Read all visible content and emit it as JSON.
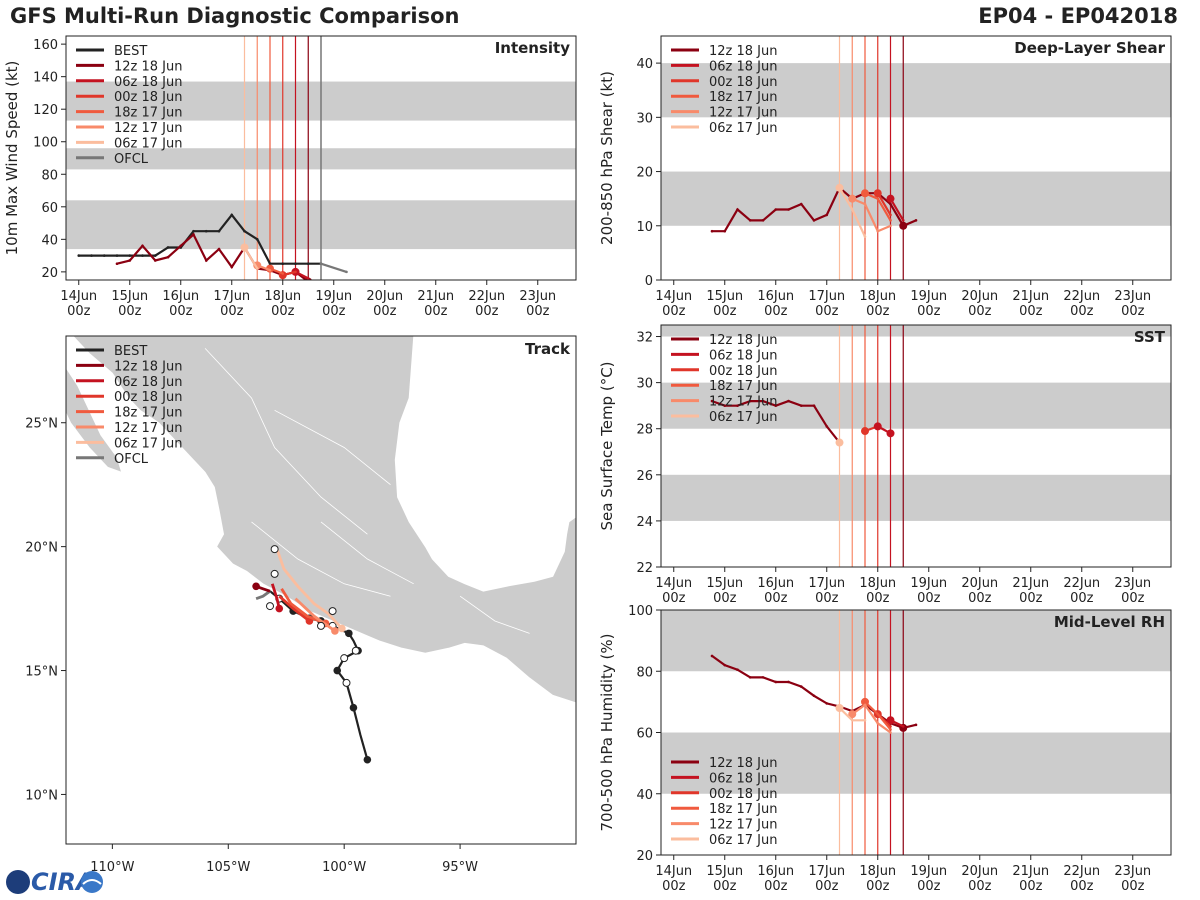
{
  "header": {
    "title_left": "GFS Multi-Run Diagnostic Comparison",
    "title_right": "EP04 - EP042018"
  },
  "logo": {
    "text": "CIRA"
  },
  "colors": {
    "BEST": "#222222",
    "12z 18 Jun": "#8b0011",
    "06z 18 Jun": "#c41220",
    "00z 18 Jun": "#e0362a",
    "18z 17 Jun": "#f05a3e",
    "12z 17 Jun": "#f88a6a",
    "06z 17 Jun": "#fbbd9e",
    "OFCL": "#777777",
    "band": "#cccccc"
  },
  "time_axis": {
    "tick_labels": [
      [
        "14Jun",
        "00z"
      ],
      [
        "15Jun",
        "00z"
      ],
      [
        "16Jun",
        "00z"
      ],
      [
        "17Jun",
        "00z"
      ],
      [
        "18Jun",
        "00z"
      ],
      [
        "19Jun",
        "00z"
      ],
      [
        "20Jun",
        "00z"
      ],
      [
        "21Jun",
        "00z"
      ],
      [
        "22Jun",
        "00z"
      ],
      [
        "23Jun",
        "00z"
      ]
    ],
    "range_days": [
      0,
      10
    ],
    "init_times_days": [
      3.25,
      3.5,
      3.75,
      4.0,
      4.25,
      4.5
    ],
    "ofcl_line_days": 4.75
  },
  "chart_data": [
    {
      "id": "intensity",
      "type": "line",
      "title": "Intensity",
      "ylabel": "10m Max Wind Speed (kt)",
      "ylim": [
        15,
        165
      ],
      "yticks": [
        20,
        40,
        60,
        80,
        100,
        120,
        140,
        160
      ],
      "bands": [
        [
          34,
          64
        ],
        [
          83,
          96
        ],
        [
          113,
          137
        ]
      ],
      "legend": [
        "BEST",
        "12z 18 Jun",
        "06z 18 Jun",
        "00z 18 Jun",
        "18z 17 Jun",
        "12z 17 Jun",
        "06z 17 Jun",
        "OFCL"
      ],
      "series": [
        {
          "name": "BEST",
          "x": [
            0,
            0.25,
            0.5,
            0.75,
            1,
            1.25,
            1.5,
            1.75,
            2,
            2.25,
            2.5,
            2.75,
            3,
            3.25,
            3.5,
            3.75,
            4,
            4.25,
            4.5,
            4.75
          ],
          "y": [
            30,
            30,
            30,
            30,
            30,
            30,
            30,
            35,
            35,
            45,
            45,
            45,
            55,
            45,
            40,
            25,
            25,
            25,
            25,
            25
          ]
        },
        {
          "name": "OFCL",
          "x": [
            4.75,
            5.25
          ],
          "y": [
            25,
            20
          ]
        },
        {
          "name": "12z 18 Jun",
          "x": [
            0.75,
            1,
            1.25,
            1.5,
            1.75,
            2,
            2.25,
            2.5,
            2.75,
            3,
            3.25,
            3.5,
            3.75,
            4,
            4.25,
            4.5
          ],
          "y": [
            25,
            27,
            36,
            27,
            29,
            36,
            43,
            27,
            34,
            23,
            35,
            22,
            21,
            18,
            20,
            14
          ],
          "markers": [
            4.5
          ]
        },
        {
          "name": "06z 18 Jun",
          "x": [
            4.25,
            4.5
          ],
          "y": [
            20,
            16
          ],
          "markers": [
            4.25
          ]
        },
        {
          "name": "00z 18 Jun",
          "x": [
            4.0,
            4.25
          ],
          "y": [
            18,
            20
          ],
          "markers": [
            4.0
          ]
        },
        {
          "name": "18z 17 Jun",
          "x": [
            3.75,
            4.0
          ],
          "y": [
            22,
            19
          ],
          "markers": [
            3.75
          ]
        },
        {
          "name": "12z 17 Jun",
          "x": [
            3.5,
            3.75
          ],
          "y": [
            24,
            21
          ],
          "markers": [
            3.5
          ]
        },
        {
          "name": "06z 17 Jun",
          "x": [
            3.25,
            3.5
          ],
          "y": [
            35,
            22
          ],
          "markers": [
            3.25
          ]
        }
      ]
    },
    {
      "id": "shear",
      "type": "line",
      "title": "Deep-Layer Shear",
      "ylabel": "200-850 hPa Shear (kt)",
      "ylim": [
        0,
        45
      ],
      "yticks": [
        0,
        10,
        20,
        30,
        40
      ],
      "bands": [
        [
          10,
          20
        ],
        [
          30,
          40
        ]
      ],
      "legend": [
        "12z 18 Jun",
        "06z 18 Jun",
        "00z 18 Jun",
        "18z 17 Jun",
        "12z 17 Jun",
        "06z 17 Jun"
      ],
      "series": [
        {
          "name": "12z 18 Jun",
          "x": [
            0.75,
            1,
            1.25,
            1.5,
            1.75,
            2,
            2.25,
            2.5,
            2.75,
            3,
            3.25,
            3.5,
            3.75,
            4,
            4.25,
            4.5,
            4.75
          ],
          "y": [
            9,
            9,
            13,
            11,
            11,
            13,
            13,
            14,
            11,
            12,
            17,
            15,
            16,
            16,
            14,
            10,
            11
          ],
          "markers": [
            4.5
          ]
        },
        {
          "name": "06z 18 Jun",
          "x": [
            4.25,
            4.5
          ],
          "y": [
            15,
            11
          ],
          "markers": [
            4.25
          ]
        },
        {
          "name": "00z 18 Jun",
          "x": [
            4.0,
            4.25
          ],
          "y": [
            16,
            12
          ],
          "markers": [
            4.0
          ]
        },
        {
          "name": "18z 17 Jun",
          "x": [
            3.75,
            4.0,
            4.25
          ],
          "y": [
            16,
            15,
            11
          ],
          "markers": [
            3.75
          ]
        },
        {
          "name": "12z 17 Jun",
          "x": [
            3.5,
            3.75,
            4.0,
            4.25
          ],
          "y": [
            15,
            14,
            9,
            10
          ],
          "markers": [
            3.5
          ]
        },
        {
          "name": "06z 17 Jun",
          "x": [
            3.25,
            3.5,
            3.75
          ],
          "y": [
            17,
            13,
            8
          ],
          "markers": [
            3.25
          ]
        }
      ]
    },
    {
      "id": "sst",
      "type": "line",
      "title": "SST",
      "ylabel": "Sea Surface Temp (°C)",
      "ylim": [
        22,
        32.5
      ],
      "yticks": [
        22,
        24,
        26,
        28,
        30,
        32
      ],
      "bands": [
        [
          24,
          26
        ],
        [
          28,
          30
        ],
        [
          32,
          33
        ]
      ],
      "legend": [
        "12z 18 Jun",
        "06z 18 Jun",
        "00z 18 Jun",
        "18z 17 Jun",
        "12z 17 Jun",
        "06z 17 Jun"
      ],
      "series": [
        {
          "name": "12z 18 Jun",
          "x": [
            0.75,
            1,
            1.25,
            1.5,
            1.75,
            2,
            2.25,
            2.5,
            2.75,
            3,
            3.25
          ],
          "y": [
            29.2,
            29,
            29,
            29.2,
            29.2,
            29,
            29.2,
            29,
            29,
            28.1,
            27.4
          ]
        },
        {
          "name": "00z 18 Jun",
          "x": [
            3.75,
            4.0
          ],
          "y": [
            27.9,
            28.1
          ],
          "markers": [
            3.75
          ]
        },
        {
          "name": "06z 18 Jun",
          "x": [
            4.0,
            4.25
          ],
          "y": [
            28.1,
            27.8
          ],
          "markers": [
            4.0,
            4.25
          ]
        },
        {
          "name": "06z 17 Jun",
          "x": [
            3.25
          ],
          "y": [
            27.4
          ],
          "markers": [
            3.25
          ]
        }
      ]
    },
    {
      "id": "rh",
      "type": "line",
      "title": "Mid-Level RH",
      "ylabel": "700-500 hPa Humidity (%)",
      "ylim": [
        20,
        100
      ],
      "yticks": [
        20,
        40,
        60,
        80,
        100
      ],
      "bands": [
        [
          40,
          60
        ],
        [
          80,
          100
        ]
      ],
      "legend": [
        "12z 18 Jun",
        "06z 18 Jun",
        "00z 18 Jun",
        "18z 17 Jun",
        "12z 17 Jun",
        "06z 17 Jun"
      ],
      "series": [
        {
          "name": "12z 18 Jun",
          "x": [
            0.75,
            1,
            1.25,
            1.5,
            1.75,
            2,
            2.25,
            2.5,
            2.75,
            3,
            3.25,
            3.5,
            3.75,
            4,
            4.25,
            4.5,
            4.75
          ],
          "y": [
            85,
            82,
            80.5,
            78,
            78,
            76.5,
            76.5,
            75,
            72,
            69.5,
            68.5,
            67,
            69,
            66,
            63,
            61.5,
            62.5
          ],
          "markers": [
            4.5
          ]
        },
        {
          "name": "06z 18 Jun",
          "x": [
            4.25,
            4.5
          ],
          "y": [
            64,
            62
          ],
          "markers": [
            4.25
          ]
        },
        {
          "name": "00z 18 Jun",
          "x": [
            4.0,
            4.25
          ],
          "y": [
            66,
            62
          ],
          "markers": [
            4.0
          ]
        },
        {
          "name": "18z 17 Jun",
          "x": [
            3.75,
            4.0,
            4.25
          ],
          "y": [
            70,
            66,
            61
          ],
          "markers": [
            3.75
          ]
        },
        {
          "name": "12z 17 Jun",
          "x": [
            3.5,
            3.75,
            4.0,
            4.25
          ],
          "y": [
            66,
            69,
            63,
            60
          ],
          "markers": [
            3.5
          ]
        },
        {
          "name": "06z 17 Jun",
          "x": [
            3.25,
            3.5,
            3.75
          ],
          "y": [
            68,
            64,
            64
          ],
          "markers": [
            3.25
          ]
        }
      ]
    },
    {
      "id": "track",
      "type": "line",
      "title": "Track",
      "xlabel_ticks": [
        "110°W",
        "105°W",
        "100°W",
        "95°W"
      ],
      "ylabel_ticks": [
        "10°N",
        "15°N",
        "20°N",
        "25°N"
      ],
      "lon_range": [
        -112,
        -90
      ],
      "lat_range": [
        8,
        28.5
      ],
      "xtick_values": [
        -110,
        -105,
        -100,
        -95
      ],
      "ytick_values": [
        10,
        15,
        20,
        25
      ],
      "legend": [
        "BEST",
        "12z 18 Jun",
        "06z 18 Jun",
        "00z 18 Jun",
        "18z 17 Jun",
        "12z 17 Jun",
        "06z 17 Jun",
        "OFCL"
      ],
      "series": [
        {
          "name": "BEST",
          "lon": [
            -99.0,
            -99.3,
            -99.6,
            -99.9,
            -100.3,
            -100.0,
            -99.4,
            -99.6,
            -99.8,
            -100.5,
            -101.0,
            -101.5,
            -102.2,
            -102.8,
            -103.2
          ],
          "lat": [
            11.4,
            12.4,
            13.5,
            14.5,
            15.0,
            15.5,
            15.8,
            16.2,
            16.5,
            16.8,
            17.0,
            17.1,
            17.4,
            17.9,
            18.2
          ],
          "filled": [
            0,
            2,
            4,
            6,
            8,
            10,
            12
          ],
          "open": [
            5,
            9,
            11,
            13
          ]
        },
        {
          "name": "OFCL",
          "lon": [
            -103.2,
            -103.5,
            -103.8
          ],
          "lat": [
            18.2,
            18.0,
            17.9
          ]
        },
        {
          "name": "12z 18 Jun",
          "lon": [
            -103.2,
            -103.5,
            -103.8
          ],
          "lat": [
            18.2,
            18.3,
            18.4
          ],
          "filled": [
            2
          ]
        },
        {
          "name": "06z 18 Jun",
          "lon": [
            -102.8,
            -102.9,
            -103.1
          ],
          "lat": [
            17.5,
            17.9,
            18.5
          ],
          "filled": [
            0
          ]
        },
        {
          "name": "00z 18 Jun",
          "lon": [
            -101.5,
            -102.2,
            -102.8
          ],
          "lat": [
            17.0,
            17.5,
            18.0
          ],
          "filled": [
            0
          ]
        },
        {
          "name": "18z 17 Jun",
          "lon": [
            -100.8,
            -101.6,
            -102.3,
            -102.7
          ],
          "lat": [
            16.9,
            17.2,
            17.7,
            18.3
          ],
          "filled": [
            0
          ]
        },
        {
          "name": "12z 17 Jun",
          "lon": [
            -100.4,
            -101.3,
            -102.1
          ],
          "lat": [
            16.6,
            17.2,
            17.9
          ],
          "filled": [
            0
          ]
        },
        {
          "name": "06z 17 Jun",
          "lon": [
            -100.1,
            -100.7,
            -101.3,
            -102.0,
            -102.6,
            -102.9
          ],
          "lat": [
            16.7,
            17.3,
            17.7,
            18.4,
            19.1,
            19.9
          ],
          "filled": [
            0
          ]
        }
      ]
    }
  ]
}
